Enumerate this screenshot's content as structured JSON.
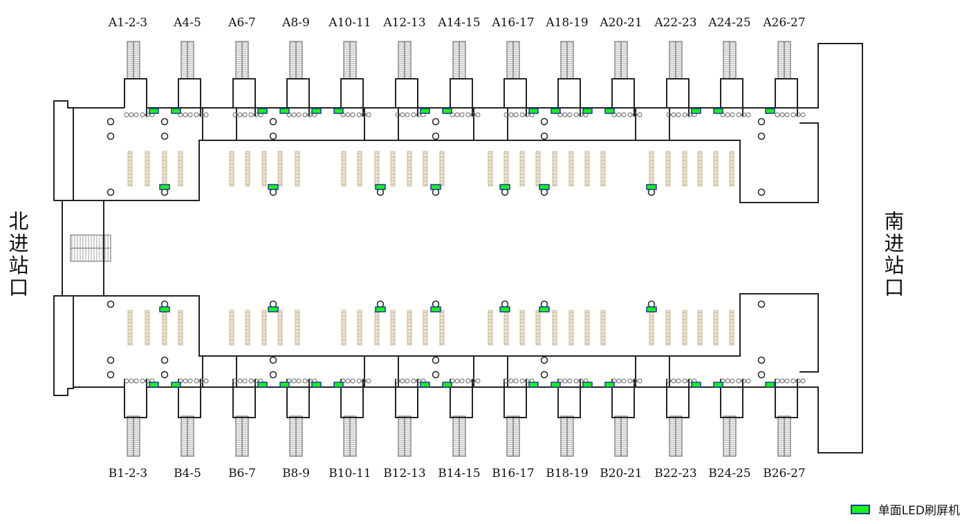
{
  "gates_top": [
    "A1-2-3",
    "A4-5",
    "A6-7",
    "A8-9",
    "A10-11",
    "A12-13",
    "A14-15",
    "A16-17",
    "A18-19",
    "A20-21",
    "A22-23",
    "A24-25",
    "A26-27"
  ],
  "gates_bottom": [
    "B1-2-3",
    "B4-5",
    "B6-7",
    "B8-9",
    "B10-11",
    "B12-13",
    "B14-15",
    "B16-17",
    "B18-19",
    "B20-21",
    "B22-23",
    "B24-25",
    "B26-27"
  ],
  "north_entrance": "北进站口",
  "south_entrance": "南进站口",
  "legend": {
    "label": "单面LED刷屏机",
    "color": "#1cf01c",
    "border": "#1a3a99"
  }
}
